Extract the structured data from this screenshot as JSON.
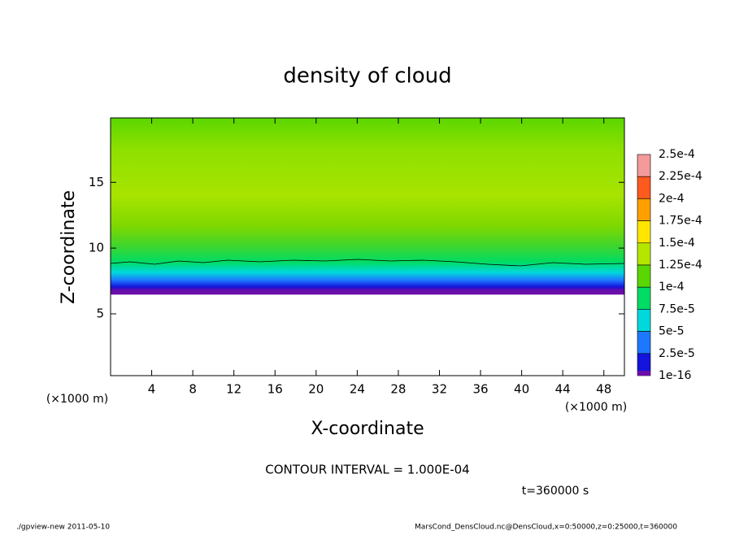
{
  "chart_data": {
    "type": "contour",
    "title": "density of cloud",
    "x_label": "X-coordinate",
    "y_label": "Z-coordinate",
    "x_unit_left": "(×1000 m)",
    "x_unit_right": "(×1000 m)",
    "xlim": [
      0,
      50
    ],
    "xticks": [
      4,
      8,
      12,
      16,
      20,
      24,
      28,
      32,
      36,
      40,
      44,
      48
    ],
    "ylim": [
      0.3,
      19.9
    ],
    "yticks": [
      5,
      10,
      15
    ],
    "colorbar": {
      "levels": [
        {
          "value": 0.00025,
          "label": "2.5e-4"
        },
        {
          "value": 0.000225,
          "label": "2.25e-4"
        },
        {
          "value": 0.0002,
          "label": "2e-4"
        },
        {
          "value": 0.000175,
          "label": "1.75e-4"
        },
        {
          "value": 0.00015,
          "label": "1.5e-4"
        },
        {
          "value": 0.000125,
          "label": "1.25e-4"
        },
        {
          "value": 0.0001,
          "label": "1e-4"
        },
        {
          "value": 7.5e-05,
          "label": "7.5e-5"
        },
        {
          "value": 5e-05,
          "label": "5e-5"
        },
        {
          "value": 2.5e-05,
          "label": "2.5e-5"
        },
        1e-16
      ],
      "colors": [
        "#f49a9a",
        "#ff5a1e",
        "#ff9f00",
        "#ffe600",
        "#b4e600",
        "#5ad700",
        "#00dc64",
        "#00d8dc",
        "#1e78ff",
        "#1414dc"
      ],
      "bottom_color": "#6a0ea8"
    },
    "contour_interval": "CONTOUR INTERVAL = 1.000E-04",
    "time": "t=360000 s",
    "footer_left": "./gpview-new  2011-05-10",
    "footer_right": "MarsCond_DensCloud.nc@DensCloud,x=0:50000,z=0:25000,t=360000"
  }
}
